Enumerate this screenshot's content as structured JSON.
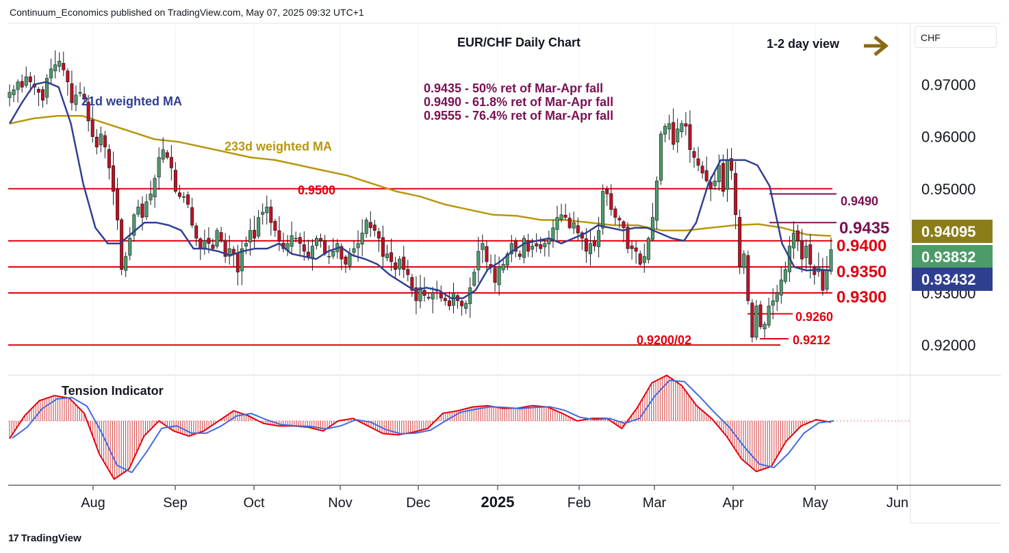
{
  "header": "Continuum_Economics published on TradingView.com, May 07, 2025 09:32 UTC+1",
  "currency": "CHF",
  "brand": "TradingView",
  "chart_data": {
    "type": "candlestick",
    "title": "EUR/CHF Daily Chart",
    "view_label": "1-2 day view",
    "fib_notes": [
      "0.9435 - 50% ret of Mar-Apr fall",
      "0.9490 - 61.8% ret of Mar-Apr fall",
      "0.9555 - 76.4% ret of Mar-Apr fall"
    ],
    "ma_labels": {
      "ma21": "21d weighted MA",
      "ma233": "233d weighted MA"
    },
    "indicator_label": "Tension Indicator",
    "ylim": [
      0.9145,
      0.9815
    ],
    "y_ticks": [
      "0.97000",
      "0.96000",
      "0.95000",
      "0.93000",
      "0.92000"
    ],
    "y_tick_values": [
      0.97,
      0.96,
      0.95,
      0.93,
      0.92
    ],
    "x_ticks": [
      "Aug",
      "Sep",
      "Oct",
      "Nov",
      "Dec",
      "2025",
      "Feb",
      "Mar",
      "Apr",
      "May",
      "Jun"
    ],
    "price_tags": [
      {
        "text": "0.94095",
        "value": 0.94095,
        "color": "#8B7E1A"
      },
      {
        "text": "0.93832",
        "value": 0.93832,
        "color": "#4C9C6A"
      },
      {
        "text": "0.93432",
        "value": 0.93432,
        "color": "#2F3F8F"
      }
    ],
    "levels": [
      {
        "label": "0.9500",
        "value": 0.95,
        "color": "#E0000F"
      },
      {
        "label": "0.9400",
        "value": 0.94,
        "color": "#E0000F"
      },
      {
        "label": "0.9350",
        "value": 0.935,
        "color": "#E0000F"
      },
      {
        "label": "0.9300",
        "value": 0.93,
        "color": "#E0000F"
      },
      {
        "label": "0.9200/02",
        "value": 0.92,
        "color": "#E0000F"
      },
      {
        "label": "0.9490",
        "value": 0.949,
        "color": "#7A1052"
      },
      {
        "label": "0.9435",
        "value": 0.9435,
        "color": "#7A1052"
      },
      {
        "label": "0.9260",
        "value": 0.926,
        "color": "#E0000F"
      },
      {
        "label": "0.9212",
        "value": 0.9212,
        "color": "#E0000F"
      }
    ],
    "colors": {
      "up": "#4C9C6A",
      "down": "#C0111F",
      "ma21": "#2F3F8F",
      "ma233": "#B8960C",
      "level": "#E0000F",
      "fib": "#7A1052",
      "arrow": "#8B6914"
    },
    "series": [
      {
        "name": "EUR/CHF",
        "closes": [
          0.9685,
          0.969,
          0.9705,
          0.9695,
          0.9715,
          0.9705,
          0.9695,
          0.9685,
          0.967,
          0.9712,
          0.973,
          0.9738,
          0.9745,
          0.9728,
          0.9705,
          0.9665,
          0.968,
          0.9685,
          0.9672,
          0.963,
          0.96,
          0.958,
          0.9605,
          0.958,
          0.954,
          0.9495,
          0.944,
          0.9345,
          0.937,
          0.9405,
          0.945,
          0.9465,
          0.9445,
          0.9475,
          0.949,
          0.952,
          0.956,
          0.9575,
          0.956,
          0.954,
          0.9495,
          0.9485,
          0.9485,
          0.947,
          0.943,
          0.9405,
          0.9385,
          0.94,
          0.9395,
          0.9385,
          0.942,
          0.94,
          0.937,
          0.9385,
          0.9375,
          0.934,
          0.9385,
          0.9395,
          0.942,
          0.9405,
          0.9445,
          0.9455,
          0.9465,
          0.9435,
          0.942,
          0.94,
          0.9385,
          0.9395,
          0.941,
          0.9405,
          0.9395,
          0.938,
          0.937,
          0.939,
          0.9405,
          0.94,
          0.9375,
          0.937,
          0.938,
          0.9395,
          0.9365,
          0.9355,
          0.9375,
          0.9385,
          0.9395,
          0.9415,
          0.944,
          0.9425,
          0.942,
          0.9405,
          0.937,
          0.9375,
          0.936,
          0.9345,
          0.9365,
          0.9345,
          0.9335,
          0.9305,
          0.9285,
          0.931,
          0.9295,
          0.929,
          0.93,
          0.9305,
          0.929,
          0.9285,
          0.9275,
          0.93,
          0.9285,
          0.9275,
          0.928,
          0.931,
          0.934,
          0.938,
          0.9395,
          0.936,
          0.935,
          0.932,
          0.935,
          0.9355,
          0.9375,
          0.9395,
          0.938,
          0.937,
          0.9405,
          0.938,
          0.939,
          0.939,
          0.9385,
          0.9395,
          0.9405,
          0.9425,
          0.9445,
          0.945,
          0.9445,
          0.9425,
          0.9435,
          0.9415,
          0.9405,
          0.938,
          0.9395,
          0.939,
          0.942,
          0.9495,
          0.949,
          0.946,
          0.9445,
          0.944,
          0.9425,
          0.9385,
          0.9385,
          0.938,
          0.9355,
          0.937,
          0.9405,
          0.9445,
          0.9515,
          0.9605,
          0.962,
          0.9625,
          0.9585,
          0.9615,
          0.9625,
          0.962,
          0.9575,
          0.956,
          0.9545,
          0.953,
          0.9515,
          0.95,
          0.9515,
          0.9545,
          0.9495,
          0.9555,
          0.9535,
          0.945,
          0.935,
          0.9375,
          0.9285,
          0.9215,
          0.9275,
          0.9235,
          0.924,
          0.9275,
          0.9285,
          0.93,
          0.9325,
          0.9345,
          0.939,
          0.9415,
          0.94,
          0.9365,
          0.939,
          0.9355,
          0.9335,
          0.935,
          0.9305,
          0.9345,
          0.93832
        ]
      },
      {
        "name": "21d weighted MA",
        "values": [
          0.9625,
          0.9665,
          0.97,
          0.9705,
          0.9695,
          0.9625,
          0.951,
          0.9425,
          0.9395,
          0.9395,
          0.9415,
          0.9435,
          0.9435,
          0.943,
          0.942,
          0.9385,
          0.9385,
          0.938,
          0.9372,
          0.938,
          0.9385,
          0.9385,
          0.9395,
          0.9375,
          0.937,
          0.9365,
          0.938,
          0.9388,
          0.9372,
          0.9365,
          0.9355,
          0.9335,
          0.932,
          0.9305,
          0.931,
          0.9305,
          0.929,
          0.929,
          0.9305,
          0.9345,
          0.936,
          0.938,
          0.9395,
          0.94,
          0.9405,
          0.9395,
          0.9405,
          0.9415,
          0.943,
          0.9425,
          0.942,
          0.9425,
          0.9425,
          0.9415,
          0.9405,
          0.94,
          0.9435,
          0.951,
          0.9555,
          0.9555,
          0.9555,
          0.9545,
          0.9505,
          0.9395,
          0.935,
          0.9343,
          0.9345,
          0.9343
        ]
      },
      {
        "name": "233d weighted MA",
        "values": [
          0.9625,
          0.9635,
          0.964,
          0.964,
          0.9625,
          0.961,
          0.9595,
          0.959,
          0.958,
          0.957,
          0.956,
          0.9555,
          0.9545,
          0.9535,
          0.9525,
          0.951,
          0.9495,
          0.9485,
          0.947,
          0.946,
          0.945,
          0.9448,
          0.944,
          0.944,
          0.9435,
          0.943,
          0.943,
          0.942,
          0.942,
          0.9425,
          0.943,
          0.9432,
          0.9425,
          0.9412,
          0.94095
        ]
      }
    ],
    "indicator": {
      "name": "Tension Indicator",
      "values": [
        -0.7,
        0.2,
        0.8,
        1.0,
        0.9,
        0.3,
        -1.3,
        -2.3,
        -1.9,
        -0.6,
        0.0,
        -0.4,
        -0.6,
        -0.4,
        0.0,
        0.4,
        0.2,
        -0.1,
        -0.2,
        -0.2,
        -0.25,
        -0.4,
        0.0,
        0.1,
        -0.2,
        -0.5,
        -0.55,
        -0.45,
        -0.3,
        0.3,
        0.4,
        0.55,
        0.6,
        0.5,
        0.5,
        0.6,
        0.55,
        0.3,
        0.0,
        0.1,
        0.1,
        -0.3,
        0.5,
        1.5,
        1.8,
        1.4,
        0.6,
        0.1,
        -0.6,
        -1.5,
        -2.0,
        -1.8,
        -0.8,
        -0.2,
        0.05,
        -0.05
      ]
    }
  }
}
